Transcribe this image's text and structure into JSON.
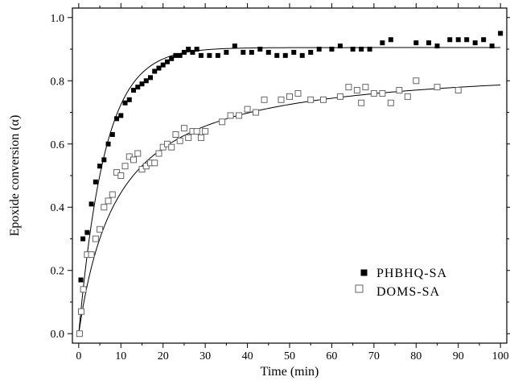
{
  "chart_data": {
    "type": "scatter",
    "xlabel": "Time (min)",
    "ylabel": "Epoxide conversion (α)",
    "xlim": [
      -1.5,
      101.5
    ],
    "ylim": [
      -0.03,
      1.03
    ],
    "xticks": [
      0,
      10,
      20,
      30,
      40,
      50,
      60,
      70,
      80,
      90,
      100
    ],
    "yticks": [
      0.0,
      0.2,
      0.4,
      0.6,
      0.8,
      1.0
    ],
    "ytick_labels": [
      "0.0",
      "0.2",
      "0.4",
      "0.6",
      "0.8",
      "1.0"
    ],
    "legend_position": "lower-right",
    "series": [
      {
        "name": "PHBHQ-SA",
        "marker": "filled-square",
        "color": "#000000",
        "points": [
          [
            0.5,
            0.17
          ],
          [
            1.0,
            0.3
          ],
          [
            2.0,
            0.32
          ],
          [
            3.0,
            0.41
          ],
          [
            4.0,
            0.48
          ],
          [
            5.0,
            0.53
          ],
          [
            6.0,
            0.55
          ],
          [
            7.0,
            0.6
          ],
          [
            8.0,
            0.63
          ],
          [
            9.0,
            0.68
          ],
          [
            10.0,
            0.69
          ],
          [
            11.0,
            0.73
          ],
          [
            12.0,
            0.74
          ],
          [
            13.0,
            0.77
          ],
          [
            14.0,
            0.78
          ],
          [
            15.0,
            0.79
          ],
          [
            16.0,
            0.8
          ],
          [
            17.0,
            0.81
          ],
          [
            18.0,
            0.83
          ],
          [
            19.0,
            0.84
          ],
          [
            20.0,
            0.85
          ],
          [
            21.0,
            0.86
          ],
          [
            22.0,
            0.87
          ],
          [
            23.0,
            0.88
          ],
          [
            24.0,
            0.88
          ],
          [
            25.0,
            0.89
          ],
          [
            26.0,
            0.9
          ],
          [
            27.0,
            0.89
          ],
          [
            28.0,
            0.9
          ],
          [
            29.0,
            0.88
          ],
          [
            31.0,
            0.88
          ],
          [
            33.0,
            0.88
          ],
          [
            35.0,
            0.89
          ],
          [
            37.0,
            0.91
          ],
          [
            39.0,
            0.89
          ],
          [
            41.0,
            0.89
          ],
          [
            43.0,
            0.9
          ],
          [
            45.0,
            0.89
          ],
          [
            47.0,
            0.88
          ],
          [
            49.0,
            0.88
          ],
          [
            51.0,
            0.89
          ],
          [
            53.0,
            0.88
          ],
          [
            55.0,
            0.89
          ],
          [
            57.0,
            0.9
          ],
          [
            60.0,
            0.9
          ],
          [
            62.0,
            0.91
          ],
          [
            65.0,
            0.9
          ],
          [
            67.0,
            0.9
          ],
          [
            69.0,
            0.9
          ],
          [
            72.0,
            0.92
          ],
          [
            74.0,
            0.93
          ],
          [
            80.0,
            0.92
          ],
          [
            83.0,
            0.92
          ],
          [
            85.0,
            0.91
          ],
          [
            88.0,
            0.93
          ],
          [
            90.0,
            0.93
          ],
          [
            92.0,
            0.93
          ],
          [
            94.0,
            0.92
          ],
          [
            96.0,
            0.93
          ],
          [
            98.0,
            0.91
          ],
          [
            100.0,
            0.95
          ]
        ],
        "fit": {
          "model": "a*(1-exp(-t/tau))",
          "a": 0.905,
          "tau": 6.2
        }
      },
      {
        "name": "DOMS-SA",
        "marker": "open-square",
        "color": "#000000",
        "points": [
          [
            0.2,
            0.0
          ],
          [
            0.6,
            0.07
          ],
          [
            1.1,
            0.14
          ],
          [
            2.0,
            0.25
          ],
          [
            3.0,
            0.25
          ],
          [
            4.0,
            0.3
          ],
          [
            5.0,
            0.33
          ],
          [
            6.0,
            0.4
          ],
          [
            7.0,
            0.42
          ],
          [
            8.0,
            0.44
          ],
          [
            9.0,
            0.51
          ],
          [
            10.0,
            0.5
          ],
          [
            11.0,
            0.53
          ],
          [
            12.0,
            0.56
          ],
          [
            13.0,
            0.55
          ],
          [
            14.0,
            0.57
          ],
          [
            15.0,
            0.52
          ],
          [
            16.0,
            0.53
          ],
          [
            17.0,
            0.54
          ],
          [
            18.0,
            0.54
          ],
          [
            19.0,
            0.57
          ],
          [
            20.0,
            0.59
          ],
          [
            21.0,
            0.6
          ],
          [
            22.0,
            0.59
          ],
          [
            23.0,
            0.63
          ],
          [
            24.0,
            0.61
          ],
          [
            25.0,
            0.65
          ],
          [
            26.0,
            0.62
          ],
          [
            27.0,
            0.64
          ],
          [
            28.0,
            0.64
          ],
          [
            29.0,
            0.62
          ],
          [
            30.0,
            0.64
          ],
          [
            34.0,
            0.67
          ],
          [
            36.0,
            0.69
          ],
          [
            38.0,
            0.69
          ],
          [
            40.0,
            0.71
          ],
          [
            42.0,
            0.7
          ],
          [
            44.0,
            0.74
          ],
          [
            48.0,
            0.74
          ],
          [
            50.0,
            0.75
          ],
          [
            52.0,
            0.76
          ],
          [
            55.0,
            0.74
          ],
          [
            58.0,
            0.74
          ],
          [
            62.0,
            0.75
          ],
          [
            64.0,
            0.78
          ],
          [
            66.0,
            0.77
          ],
          [
            67.0,
            0.73
          ],
          [
            68.0,
            0.78
          ],
          [
            70.0,
            0.76
          ],
          [
            72.0,
            0.76
          ],
          [
            74.0,
            0.73
          ],
          [
            76.0,
            0.77
          ],
          [
            78.0,
            0.75
          ],
          [
            80.0,
            0.8
          ],
          [
            85.0,
            0.78
          ],
          [
            90.0,
            0.77
          ]
        ],
        "fit": {
          "model": "a*t/(b+t)",
          "a": 0.86,
          "b": 9.3
        }
      }
    ]
  }
}
